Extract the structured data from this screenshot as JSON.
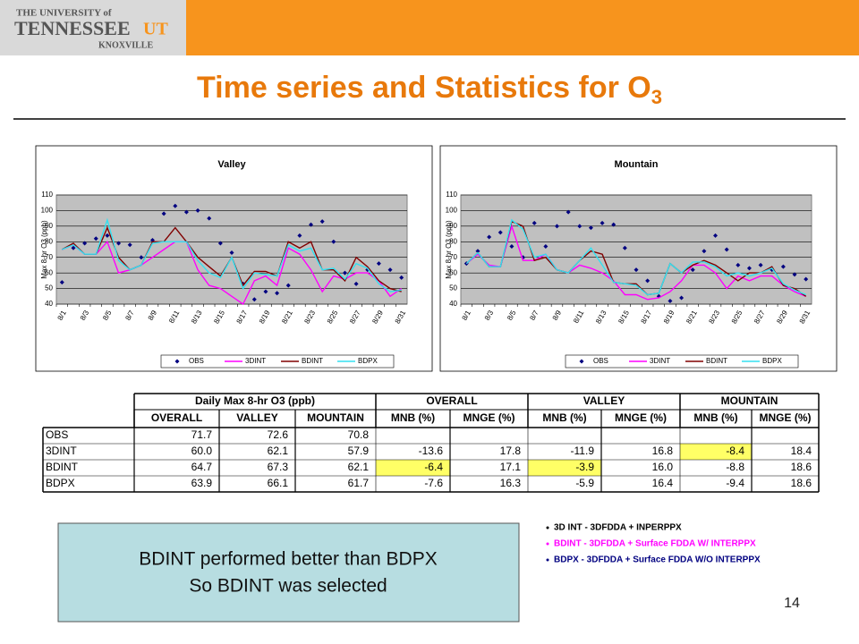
{
  "logo": {
    "line1": "THE UNIVERSITY of",
    "line2": "TENNESSEE",
    "mark": "UT",
    "line3": "KNOXVILLE"
  },
  "title": {
    "text": "Time series and Statistics for O",
    "subscript": "3"
  },
  "chart_data": [
    {
      "type": "line",
      "title": "Valley",
      "y_label": "Max 8-hr O3 (ppb)",
      "categories": [
        "8/1",
        null,
        "8/3",
        null,
        "8/5",
        null,
        "8/7",
        null,
        "8/9",
        null,
        "8/11",
        null,
        "8/13",
        null,
        "8/15",
        null,
        "8/17",
        null,
        "8/19",
        null,
        "8/21",
        null,
        "8/23",
        null,
        "8/25",
        null,
        "8/27",
        null,
        "8/29",
        null,
        "8/31"
      ],
      "ylim": [
        40,
        110
      ],
      "yticks": [
        40,
        50,
        60,
        70,
        80,
        90,
        100,
        110
      ],
      "grid": true,
      "legend": "bottom",
      "series": [
        {
          "name": "OBS",
          "color": "#000080",
          "style": "markers",
          "values": [
            54,
            76,
            79,
            82,
            84,
            79,
            78,
            70,
            81,
            98,
            103,
            99,
            100,
            95,
            79,
            73,
            53,
            43,
            48,
            47,
            52,
            84,
            91,
            93,
            80,
            60,
            53,
            62,
            66,
            62,
            57
          ]
        },
        {
          "name": "3DINT",
          "color": "#ff00ff",
          "style": "lines",
          "values": [
            75,
            78,
            72,
            72,
            80,
            60,
            62,
            65,
            70,
            75,
            80,
            80,
            62,
            52,
            50,
            45,
            40,
            55,
            58,
            52,
            76,
            72,
            62,
            48,
            58,
            56,
            60,
            60,
            55,
            45,
            50
          ]
        },
        {
          "name": "BDINT",
          "color": "#800000",
          "style": "lines",
          "values": [
            75,
            79,
            72,
            72,
            89,
            70,
            62,
            65,
            80,
            80,
            89,
            80,
            70,
            64,
            58,
            70,
            52,
            61,
            61,
            58,
            80,
            76,
            80,
            62,
            62,
            55,
            70,
            64,
            55,
            50,
            48
          ]
        },
        {
          "name": "BDPX",
          "color": "#33e0f0",
          "style": "lines",
          "values": [
            75,
            78,
            72,
            72,
            94,
            68,
            62,
            65,
            79,
            80,
            80,
            80,
            68,
            60,
            57,
            70,
            50,
            60,
            59,
            58,
            78,
            74,
            76,
            62,
            63,
            56,
            66,
            63,
            53,
            48,
            49
          ]
        }
      ]
    },
    {
      "type": "line",
      "title": "Mountain",
      "y_label": "Max 8-hr O3 (ppb)",
      "categories": [
        "8/1",
        null,
        "8/3",
        null,
        "8/5",
        null,
        "8/7",
        null,
        "8/9",
        null,
        "8/11",
        null,
        "8/13",
        null,
        "8/15",
        null,
        "8/17",
        null,
        "8/19",
        null,
        "8/21",
        null,
        "8/23",
        null,
        "8/25",
        null,
        "8/27",
        null,
        "8/29",
        null,
        "8/31"
      ],
      "ylim": [
        40,
        110
      ],
      "yticks": [
        40,
        50,
        60,
        70,
        80,
        90,
        100,
        110
      ],
      "grid": true,
      "legend": "bottom",
      "series": [
        {
          "name": "OBS",
          "color": "#000080",
          "style": "markers",
          "values": [
            66,
            74,
            83,
            86,
            77,
            70,
            92,
            77,
            90,
            99,
            90,
            89,
            92,
            91,
            76,
            62,
            55,
            45,
            42,
            44,
            62,
            74,
            84,
            75,
            65,
            63,
            65,
            62,
            64,
            59,
            56
          ]
        },
        {
          "name": "3DINT",
          "color": "#ff00ff",
          "style": "lines",
          "values": [
            66,
            72,
            65,
            64,
            90,
            68,
            68,
            72,
            62,
            60,
            65,
            63,
            60,
            55,
            46,
            46,
            43,
            44,
            48,
            55,
            65,
            65,
            60,
            50,
            58,
            55,
            58,
            58,
            52,
            48,
            45
          ]
        },
        {
          "name": "BDINT",
          "color": "#800000",
          "style": "lines",
          "values": [
            66,
            73,
            64,
            64,
            93,
            90,
            68,
            70,
            62,
            60,
            68,
            74,
            72,
            54,
            53,
            53,
            46,
            47,
            66,
            60,
            65,
            68,
            65,
            60,
            55,
            60,
            60,
            64,
            52,
            50,
            45
          ]
        },
        {
          "name": "BDPX",
          "color": "#33e0f0",
          "style": "lines",
          "values": [
            66,
            73,
            64,
            64,
            94,
            88,
            70,
            72,
            62,
            60,
            68,
            76,
            65,
            54,
            53,
            52,
            46,
            47,
            66,
            60,
            67,
            67,
            64,
            58,
            60,
            58,
            60,
            63,
            53,
            49,
            46
          ]
        }
      ]
    }
  ],
  "table": {
    "groups": [
      "Daily Max 8-hr O3 (ppb)",
      "OVERALL",
      "VALLEY",
      "MOUNTAIN"
    ],
    "columns": [
      "OVERALL",
      "VALLEY",
      "MOUNTAIN",
      "MNB (%)",
      "MNGE (%)",
      "MNB (%)",
      "MNGE (%)",
      "MNB (%)",
      "MNGE (%)"
    ],
    "rows": [
      {
        "label": "OBS",
        "cells": [
          "71.7",
          "72.6",
          "70.8"
        ]
      },
      {
        "label": "3DINT",
        "cells": [
          "60.0",
          "62.1",
          "57.9",
          "-13.6",
          "17.8",
          "-11.9",
          "16.8",
          "-8.4",
          "18.4"
        ]
      },
      {
        "label": "BDINT",
        "cells": [
          "64.7",
          "67.3",
          "62.1",
          "-6.4",
          "17.1",
          "-3.9",
          "16.0",
          "-8.8",
          "18.6"
        ]
      },
      {
        "label": "BDPX",
        "cells": [
          "63.9",
          "66.1",
          "61.7",
          "-7.6",
          "16.3",
          "-5.9",
          "16.4",
          "-9.4",
          "18.6"
        ]
      }
    ]
  },
  "conclusion": [
    "BDINT performed better than BDPX",
    "So BDINT was selected"
  ],
  "notes": [
    "3D INT - 3DFDDA + INPERPPX",
    "BDINT - 3DFDDA + Surface FDDA  W/ INTERPPX",
    "BDPX - 3DFDDA + Surface FDDA W/O INTERPPX"
  ],
  "page_number": "14"
}
